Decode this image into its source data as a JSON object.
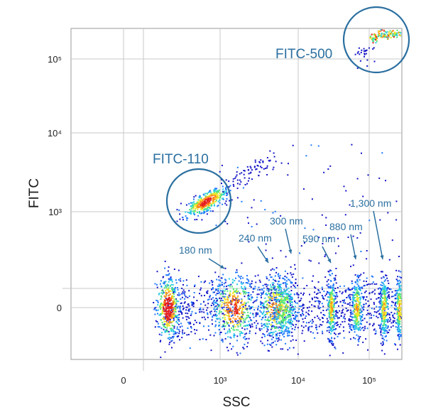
{
  "chart_data": {
    "type": "scatter",
    "subtype": "flow-cytometry-density-plot",
    "title": "",
    "xlabel": "SSC",
    "ylabel": "FITC",
    "x_scale": "biexponential",
    "y_scale": "biexponential",
    "x_ticks": [
      {
        "value": 0,
        "label": "0"
      },
      {
        "value": 1000,
        "label": "10³"
      },
      {
        "value": 10000,
        "label": "10⁴"
      },
      {
        "value": 100000,
        "label": "10⁵"
      }
    ],
    "y_ticks": [
      {
        "value": 0,
        "label": "0"
      },
      {
        "value": 1000,
        "label": "10³"
      },
      {
        "value": 10000,
        "label": "10⁴"
      },
      {
        "value": 100000,
        "label": "10⁵"
      }
    ],
    "grid": true,
    "color_scale": [
      "#1414c8",
      "#1e78ff",
      "#28c8e6",
      "#50e678",
      "#f0e628",
      "#ff8c14",
      "#e61e1e"
    ],
    "gates": [
      {
        "label": "FITC-500",
        "ssc": 120000,
        "fitc": 170000
      },
      {
        "label": "FITC-110",
        "ssc": 750,
        "fitc": 1350
      }
    ],
    "populations": [
      {
        "label": "180 nm",
        "ssc": 1100
      },
      {
        "label": "240 nm",
        "ssc": 5000
      },
      {
        "label": "300 nm",
        "ssc": 8500
      },
      {
        "label": "590 nm",
        "ssc": 36000
      },
      {
        "label": "880 nm",
        "ssc": 65000
      },
      {
        "label": "1,300 nm",
        "ssc": 140000
      }
    ]
  },
  "colors": {
    "gate_stroke": "#2a6fa0",
    "annotation_text": "#2a6fa0",
    "grid": "#c8c8c8",
    "frame": "#999999"
  }
}
